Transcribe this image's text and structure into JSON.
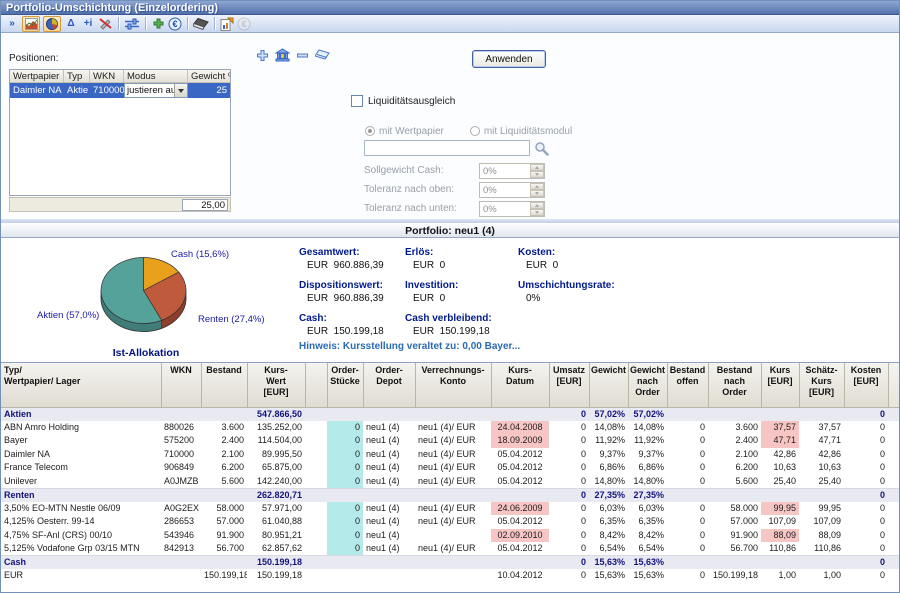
{
  "window": {
    "title": "Portfolio-Umschichtung (Einzelordering)"
  },
  "toolbar": {
    "icons": [
      "show-more",
      "chart-view",
      "pie-view",
      "delta",
      "add-info",
      "edit-disabled",
      "adjust-weights",
      "add",
      "euro-check",
      "erase",
      "export-report",
      "euro-disabled"
    ],
    "glyphs": {
      "chevrons": "»",
      "delta": "Δ",
      "add_info": "+i",
      "euro": "€"
    }
  },
  "positions": {
    "label": "Positionen:",
    "columns": [
      "Wertpapier",
      "Typ",
      "WKN",
      "Modus",
      "Gewicht %"
    ],
    "rows": [
      {
        "wertpapier": "Daimler NA",
        "typ": "Aktie",
        "wkn": "710000",
        "modus": "justieren auf",
        "gewicht": "25"
      }
    ],
    "sum": "25,00",
    "apply_label": "Anwenden"
  },
  "liquidity": {
    "checkbox_label": "Liquiditätsausgleich",
    "radio1": "mit Wertpapier",
    "radio2": "mit Liquiditätsmodul",
    "search_value": "",
    "fields": [
      {
        "label": "Sollgewicht Cash:",
        "value": "0%"
      },
      {
        "label": "Toleranz nach oben:",
        "value": "0%"
      },
      {
        "label": "Toleranz nach unten:",
        "value": "0%"
      }
    ]
  },
  "portfolio": {
    "header": "Portfolio:  neu1 (4)",
    "summary": [
      {
        "label": "Gesamtwert:",
        "value": "EUR  960.886,39"
      },
      {
        "label": "Erlös:",
        "value": "EUR  0"
      },
      {
        "label": "Kosten:",
        "value": "EUR  0"
      },
      {
        "label": "Dispositionswert:",
        "value": "EUR  960.886,39"
      },
      {
        "label": "Investition:",
        "value": "EUR  0"
      },
      {
        "label": "Umschichtungsrate:",
        "value": "0%"
      },
      {
        "label": "Cash:",
        "value": "EUR  150.199,18"
      },
      {
        "label": "Cash verbleibend:",
        "value": "EUR  150.199,18"
      }
    ],
    "hinweis": "Hinweis: Kursstellung veraltet zu: 0,00 Bayer..."
  },
  "chart_data": {
    "type": "pie",
    "title": "Ist-Allokation",
    "slices": [
      {
        "label": "Cash",
        "value": 15.6,
        "display": "Cash (15,6%)",
        "color": "#e9a11d",
        "dark": "#a87410"
      },
      {
        "label": "Renten",
        "value": 27.4,
        "display": "Renten (27,4%)",
        "color": "#bf5a3d",
        "dark": "#8f3e2c"
      },
      {
        "label": "Aktien",
        "value": 57.0,
        "display": "Aktien (57,0%)",
        "color": "#55a29b",
        "dark": "#407d78"
      }
    ],
    "legend_position": "labels-around-pie"
  },
  "table": {
    "columns": [
      "Typ/\nWertpapier/ Lager",
      "WKN",
      "Bestand",
      "Kurs-\nWert\n[EUR]",
      "",
      "Order-\nStücke",
      "Order-\nDepot",
      "Verrechnungs-\nKonto",
      "Kurs-\nDatum",
      "Umsatz\n[EUR]",
      "Gewicht",
      "Gewicht\nnach\nOrder",
      "Bestand\noffen",
      "Bestand\nnach\nOrder",
      "Kurs\n[EUR]",
      "Schätz-\nKurs\n[EUR]",
      "Kosten\n[EUR]",
      ""
    ],
    "rows": [
      {
        "type": "group",
        "name": "Aktien",
        "kurswert": "547.866,50",
        "umsatz": "0",
        "gewicht": "57,02%",
        "gewicht_nach": "57,02%",
        "kosten": "0"
      },
      {
        "type": "item",
        "name": "ABN Amro Holding",
        "wkn": "880026",
        "bestand": "3.600",
        "kurswert": "135.252,00",
        "stuecke": "0",
        "stuecke_hl": true,
        "depot": "neu1 (4)",
        "konto": "neu1 (4)/ EUR",
        "datum": "24.04.2008",
        "datum_hl": true,
        "umsatz": "0",
        "gewicht": "14,08%",
        "gewicht_nach": "14,08%",
        "bestand_offen": "0",
        "bestand_nach": "3.600",
        "kurs": "37,57",
        "kurs_hl": true,
        "schaetz": "37,57",
        "kosten": "0"
      },
      {
        "type": "item",
        "name": "Bayer",
        "wkn": "575200",
        "bestand": "2.400",
        "kurswert": "114.504,00",
        "stuecke": "0",
        "stuecke_hl": true,
        "depot": "neu1 (4)",
        "konto": "neu1 (4)/ EUR",
        "datum": "18.09.2009",
        "datum_hl": true,
        "umsatz": "0",
        "gewicht": "11,92%",
        "gewicht_nach": "11,92%",
        "bestand_offen": "0",
        "bestand_nach": "2.400",
        "kurs": "47,71",
        "kurs_hl": true,
        "schaetz": "47,71",
        "kosten": "0"
      },
      {
        "type": "item",
        "name": "Daimler NA",
        "wkn": "710000",
        "bestand": "2.100",
        "kurswert": "89.995,50",
        "stuecke": "0",
        "stuecke_hl": true,
        "depot": "neu1 (4)",
        "konto": "neu1 (4)/ EUR",
        "datum": "05.04.2012",
        "umsatz": "0",
        "gewicht": "9,37%",
        "gewicht_nach": "9,37%",
        "bestand_offen": "0",
        "bestand_nach": "2.100",
        "kurs": "42,86",
        "schaetz": "42,86",
        "kosten": "0"
      },
      {
        "type": "item",
        "name": "France Telecom",
        "wkn": "906849",
        "bestand": "6.200",
        "kurswert": "65.875,00",
        "stuecke": "0",
        "stuecke_hl": true,
        "depot": "neu1 (4)",
        "konto": "neu1 (4)/ EUR",
        "datum": "05.04.2012",
        "umsatz": "0",
        "gewicht": "6,86%",
        "gewicht_nach": "6,86%",
        "bestand_offen": "0",
        "bestand_nach": "6.200",
        "kurs": "10,63",
        "schaetz": "10,63",
        "kosten": "0"
      },
      {
        "type": "item",
        "name": "Unilever",
        "wkn": "A0JMZB",
        "bestand": "5.600",
        "kurswert": "142.240,00",
        "stuecke": "0",
        "stuecke_hl": true,
        "depot": "neu1 (4)",
        "konto": "neu1 (4)/ EUR",
        "datum": "05.04.2012",
        "umsatz": "0",
        "gewicht": "14,80%",
        "gewicht_nach": "14,80%",
        "bestand_offen": "0",
        "bestand_nach": "5.600",
        "kurs": "25,40",
        "schaetz": "25,40",
        "kosten": "0"
      },
      {
        "type": "group",
        "name": "Renten",
        "kurswert": "262.820,71",
        "umsatz": "0",
        "gewicht": "27,35%",
        "gewicht_nach": "27,35%",
        "kosten": "0"
      },
      {
        "type": "item",
        "name": "3,50% EO-MTN Nestle 06/09",
        "wkn": "A0G2EX",
        "bestand": "58.000",
        "kurswert": "57.971,00",
        "stuecke": "0",
        "stuecke_hl": true,
        "depot": "neu1 (4)",
        "konto": "neu1 (4)/ EUR",
        "datum": "24.06.2009",
        "datum_hl": true,
        "umsatz": "0",
        "gewicht": "6,03%",
        "gewicht_nach": "6,03%",
        "bestand_offen": "0",
        "bestand_nach": "58.000",
        "kurs": "99,95",
        "kurs_hl": true,
        "schaetz": "99,95",
        "kosten": "0"
      },
      {
        "type": "item",
        "name": "4,125% Oesterr. 99-14",
        "wkn": "286653",
        "bestand": "57.000",
        "kurswert": "61.040,88",
        "stuecke": "0",
        "stuecke_hl": true,
        "depot": "neu1 (4)",
        "konto": "neu1 (4)/ EUR",
        "datum": "05.04.2012",
        "umsatz": "0",
        "gewicht": "6,35%",
        "gewicht_nach": "6,35%",
        "bestand_offen": "0",
        "bestand_nach": "57.000",
        "kurs": "107,09",
        "schaetz": "107,09",
        "kosten": "0"
      },
      {
        "type": "item",
        "name": "4,75% SF-Anl (CRS) 00/10",
        "wkn": "543946",
        "bestand": "91.900",
        "kurswert": "80.951,21",
        "stuecke": "0",
        "stuecke_hl": true,
        "depot": "neu1 (4)",
        "konto": "",
        "datum": "02.09.2010",
        "datum_hl": true,
        "umsatz": "0",
        "gewicht": "8,42%",
        "gewicht_nach": "8,42%",
        "bestand_offen": "0",
        "bestand_nach": "91.900",
        "kurs": "88,09",
        "kurs_hl": true,
        "schaetz": "88,09",
        "kosten": "0"
      },
      {
        "type": "item",
        "name": "5,125% Vodafone Grp 03/15 MTN",
        "wkn": "842913",
        "bestand": "56.700",
        "kurswert": "62.857,62",
        "stuecke": "0",
        "stuecke_hl": true,
        "depot": "neu1 (4)",
        "konto": "neu1 (4)/ EUR",
        "datum": "05.04.2012",
        "umsatz": "0",
        "gewicht": "6,54%",
        "gewicht_nach": "6,54%",
        "bestand_offen": "0",
        "bestand_nach": "56.700",
        "kurs": "110,86",
        "schaetz": "110,86",
        "kosten": "0"
      },
      {
        "type": "group",
        "name": "Cash",
        "kurswert": "150.199,18",
        "umsatz": "0",
        "gewicht": "15,63%",
        "gewicht_nach": "15,63%",
        "kosten": "0"
      },
      {
        "type": "item",
        "name": "EUR",
        "wkn": "",
        "bestand": "150.199,18",
        "kurswert": "150.199,18",
        "stuecke": "",
        "depot": "",
        "konto": "",
        "datum": "10.04.2012",
        "umsatz": "0",
        "gewicht": "15,63%",
        "gewicht_nach": "15,63%",
        "bestand_offen": "0",
        "bestand_nach": "150.199,18",
        "kurs": "1,00",
        "schaetz": "1,00",
        "kosten": "0"
      }
    ],
    "colors": {
      "stale_highlight": "#f8c5c5",
      "order_highlight": "#b4ebea",
      "group_text": "#13137e"
    }
  }
}
